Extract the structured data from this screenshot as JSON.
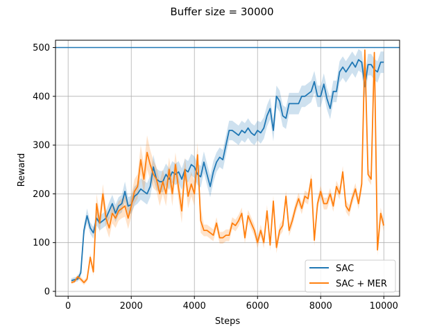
{
  "chart_data": {
    "type": "line",
    "title": "Buffer size = 30000",
    "xlabel": "Steps",
    "ylabel": "Reward",
    "xlim": [
      -400,
      10500
    ],
    "ylim": [
      -10,
      515
    ],
    "xticks": [
      0,
      2000,
      4000,
      6000,
      8000,
      10000
    ],
    "yticks": [
      0,
      100,
      200,
      300,
      400,
      500
    ],
    "xtick_labels": [
      "0",
      "2000",
      "4000",
      "6000",
      "8000",
      "10000"
    ],
    "ytick_labels": [
      "0",
      "100",
      "200",
      "300",
      "400",
      "500"
    ],
    "grid": true,
    "legend_position": "lower-right",
    "reference_line": {
      "y": 500,
      "color": "#1f77b4"
    },
    "series": [
      {
        "name": "SAC",
        "color": "#1f77b4",
        "band_color": "#1f77b4",
        "x": [
          100,
          200,
          300,
          400,
          500,
          600,
          700,
          800,
          900,
          1000,
          1100,
          1200,
          1300,
          1400,
          1500,
          1600,
          1700,
          1800,
          1900,
          2000,
          2100,
          2200,
          2300,
          2400,
          2500,
          2600,
          2700,
          2800,
          2900,
          3000,
          3100,
          3200,
          3300,
          3400,
          3500,
          3600,
          3700,
          3800,
          3900,
          4000,
          4100,
          4200,
          4300,
          4400,
          4500,
          4600,
          4700,
          4800,
          4900,
          5000,
          5100,
          5200,
          5300,
          5400,
          5500,
          5600,
          5700,
          5800,
          5900,
          6000,
          6100,
          6200,
          6300,
          6400,
          6500,
          6600,
          6700,
          6800,
          6900,
          7000,
          7100,
          7200,
          7300,
          7400,
          7500,
          7600,
          7700,
          7800,
          7900,
          8000,
          8100,
          8200,
          8300,
          8400,
          8500,
          8600,
          8700,
          8800,
          8900,
          9000,
          9100,
          9200,
          9300,
          9400,
          9500,
          9600,
          9700,
          9800,
          9900,
          10000
        ],
        "values": [
          22,
          24,
          25,
          38,
          125,
          155,
          130,
          120,
          150,
          140,
          145,
          150,
          165,
          180,
          160,
          175,
          180,
          205,
          175,
          178,
          195,
          200,
          210,
          205,
          200,
          215,
          255,
          230,
          225,
          225,
          240,
          230,
          245,
          240,
          245,
          230,
          250,
          245,
          260,
          255,
          240,
          235,
          265,
          240,
          215,
          245,
          265,
          275,
          270,
          300,
          330,
          330,
          325,
          320,
          330,
          325,
          335,
          325,
          320,
          330,
          325,
          335,
          360,
          375,
          330,
          400,
          390,
          360,
          355,
          385,
          385,
          385,
          385,
          400,
          400,
          405,
          410,
          430,
          400,
          400,
          425,
          395,
          375,
          410,
          410,
          450,
          460,
          450,
          460,
          470,
          460,
          475,
          470,
          420,
          465,
          465,
          455,
          450,
          470,
          470
        ],
        "band": [
          5,
          5,
          5,
          8,
          12,
          15,
          12,
          12,
          15,
          15,
          15,
          15,
          18,
          18,
          18,
          18,
          18,
          20,
          18,
          18,
          20,
          20,
          22,
          22,
          22,
          22,
          25,
          22,
          22,
          22,
          22,
          22,
          22,
          22,
          22,
          22,
          22,
          22,
          22,
          22,
          22,
          22,
          22,
          22,
          22,
          22,
          20,
          20,
          20,
          20,
          20,
          20,
          20,
          20,
          20,
          20,
          20,
          20,
          20,
          20,
          22,
          22,
          22,
          22,
          22,
          22,
          22,
          22,
          22,
          22,
          22,
          22,
          22,
          22,
          22,
          22,
          22,
          22,
          22,
          22,
          22,
          22,
          22,
          22,
          22,
          22,
          22,
          22,
          22,
          22,
          22,
          22,
          22,
          22,
          22,
          22,
          22,
          22,
          22,
          22
        ]
      },
      {
        "name": "SAC + MER",
        "color": "#ff7f0e",
        "band_color": "#ff7f0e",
        "x": [
          100,
          200,
          300,
          400,
          500,
          600,
          700,
          800,
          900,
          1000,
          1100,
          1200,
          1300,
          1400,
          1500,
          1600,
          1700,
          1800,
          1900,
          2000,
          2100,
          2200,
          2300,
          2400,
          2500,
          2600,
          2700,
          2800,
          2900,
          3000,
          3100,
          3200,
          3300,
          3400,
          3500,
          3600,
          3700,
          3800,
          3900,
          4000,
          4100,
          4200,
          4300,
          4400,
          4500,
          4600,
          4700,
          4800,
          4900,
          5000,
          5100,
          5200,
          5300,
          5400,
          5500,
          5600,
          5700,
          5800,
          5900,
          6000,
          6100,
          6200,
          6300,
          6400,
          6500,
          6600,
          6700,
          6800,
          6900,
          7000,
          7100,
          7200,
          7300,
          7400,
          7500,
          7600,
          7700,
          7800,
          7900,
          8000,
          8100,
          8200,
          8300,
          8400,
          8500,
          8600,
          8700,
          8800,
          8900,
          9000,
          9100,
          9200,
          9300,
          9400,
          9500,
          9600,
          9700,
          9800,
          9900,
          10000
        ],
        "values": [
          18,
          20,
          30,
          25,
          18,
          25,
          70,
          40,
          180,
          140,
          200,
          150,
          130,
          160,
          150,
          165,
          170,
          175,
          150,
          175,
          205,
          215,
          270,
          230,
          285,
          260,
          240,
          230,
          200,
          225,
          200,
          250,
          200,
          260,
          210,
          165,
          250,
          195,
          220,
          200,
          280,
          145,
          125,
          125,
          120,
          115,
          140,
          110,
          110,
          115,
          115,
          140,
          135,
          145,
          160,
          110,
          155,
          140,
          125,
          100,
          125,
          100,
          165,
          95,
          185,
          90,
          125,
          135,
          195,
          125,
          145,
          170,
          190,
          170,
          195,
          190,
          230,
          105,
          180,
          205,
          180,
          180,
          200,
          175,
          215,
          200,
          245,
          175,
          165,
          190,
          210,
          180,
          220,
          495,
          240,
          230,
          490,
          85,
          160,
          135
        ],
        "band": [
          3,
          3,
          5,
          5,
          5,
          5,
          8,
          8,
          20,
          20,
          20,
          20,
          20,
          20,
          20,
          20,
          20,
          22,
          22,
          22,
          25,
          25,
          30,
          30,
          35,
          30,
          28,
          25,
          25,
          25,
          25,
          25,
          25,
          25,
          25,
          25,
          25,
          25,
          25,
          25,
          25,
          25,
          12,
          12,
          12,
          12,
          12,
          12,
          12,
          12,
          12,
          12,
          12,
          12,
          12,
          12,
          12,
          12,
          12,
          12,
          12,
          12,
          12,
          12,
          12,
          12,
          12,
          12,
          12,
          12,
          12,
          12,
          12,
          12,
          12,
          12,
          12,
          12,
          12,
          12,
          12,
          12,
          12,
          12,
          12,
          12,
          12,
          12,
          12,
          12,
          12,
          12,
          12,
          12,
          12,
          12,
          12,
          12,
          12,
          12
        ]
      }
    ]
  }
}
